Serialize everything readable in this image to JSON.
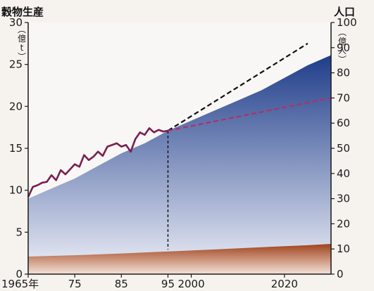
{
  "chart_data": {
    "type": "area",
    "left_axis": {
      "title": "穀物生産",
      "unit": "億t",
      "ylim": [
        0,
        30
      ],
      "ticks": [
        0,
        5,
        10,
        15,
        20,
        25,
        30
      ]
    },
    "right_axis": {
      "title": "人口",
      "unit": "億人",
      "ylim": [
        0,
        100
      ],
      "ticks": [
        0,
        10,
        20,
        30,
        40,
        50,
        60,
        70,
        80,
        90,
        100
      ]
    },
    "x_axis": {
      "xlim": [
        1965,
        2030
      ],
      "ticks": [
        {
          "year": 1965,
          "label": "1965年"
        },
        {
          "year": 1975,
          "label": "75"
        },
        {
          "year": 1985,
          "label": "85"
        },
        {
          "year": 1995,
          "label": "95"
        },
        {
          "year": 2000,
          "label": "2000"
        },
        {
          "year": 2020,
          "label": "2020"
        }
      ]
    },
    "series": [
      {
        "kind": "population-area",
        "axis": "right",
        "x": [
          1965,
          1970,
          1975,
          1980,
          1985,
          1990,
          1995,
          2000,
          2005,
          2010,
          2015,
          2020,
          2025,
          2030
        ],
        "values": [
          30,
          34,
          38,
          43,
          48,
          52,
          57,
          61,
          65,
          69,
          73,
          78,
          83,
          87
        ]
      },
      {
        "kind": "lower-area",
        "axis": "right",
        "x": [
          1965,
          1975,
          1985,
          1995,
          2005,
          2015,
          2025,
          2030
        ],
        "values": [
          7,
          7.5,
          8.2,
          9,
          9.8,
          10.7,
          11.5,
          12
        ]
      },
      {
        "kind": "grain-production-line",
        "axis": "left",
        "color": "#7a1f4f",
        "x": [
          1965,
          1966,
          1967,
          1968,
          1969,
          1970,
          1971,
          1972,
          1973,
          1974,
          1975,
          1976,
          1977,
          1978,
          1979,
          1980,
          1981,
          1982,
          1983,
          1984,
          1985,
          1986,
          1987,
          1988,
          1989,
          1990,
          1991,
          1992,
          1993,
          1994,
          1995
        ],
        "values": [
          9.2,
          10.4,
          10.6,
          10.9,
          11.0,
          11.8,
          11.2,
          12.4,
          11.9,
          12.5,
          13.1,
          12.8,
          14.2,
          13.6,
          14.0,
          14.6,
          14.1,
          15.2,
          15.4,
          15.6,
          15.2,
          15.4,
          14.6,
          16.1,
          16.9,
          16.6,
          17.4,
          16.9,
          17.2,
          17.0,
          17.1
        ]
      },
      {
        "kind": "projection-high",
        "axis": "left",
        "color": "#111111",
        "style": "dashed",
        "x": [
          1995,
          2025
        ],
        "values": [
          17.1,
          27.5
        ]
      },
      {
        "kind": "projection-low",
        "axis": "left",
        "color": "#b0306a",
        "style": "dashed",
        "x": [
          1995,
          2030
        ],
        "values": [
          17.1,
          21.0
        ]
      },
      {
        "kind": "1995-marker",
        "axis": "left",
        "color": "#111111",
        "style": "dashed",
        "x": [
          1995,
          1995
        ],
        "values": [
          0,
          17.1
        ]
      }
    ],
    "colors": {
      "population_top": "#1f3d8a",
      "population_bottom": "#eef0f8",
      "lower_top": "#a0421c",
      "lower_bottom": "#f3e2d8",
      "axis": "#1a1a1a"
    }
  }
}
